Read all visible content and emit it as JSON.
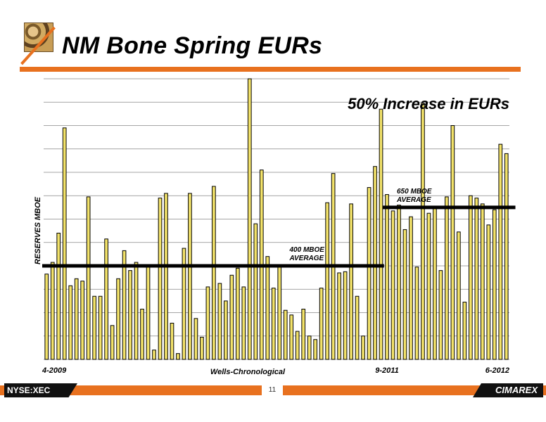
{
  "slide": {
    "title": "NM Bone Spring EURs",
    "ticker": "NYSE:XEC",
    "page_number": "11",
    "brand": "CIMAREX"
  },
  "chart_data": {
    "type": "bar",
    "title": "",
    "headline": "50% Increase in EURs",
    "ylabel": "RESERVES MBOE",
    "xlabel": "Wells-Chronological",
    "x_tick_labels": [
      {
        "label": "4-2009",
        "index": 0
      },
      {
        "label": "9-2011",
        "index": 57
      },
      {
        "label": "6-2012",
        "index": 78
      }
    ],
    "ylim": [
      0,
      1200
    ],
    "grid": true,
    "values": [
      365,
      415,
      540,
      990,
      315,
      345,
      335,
      695,
      270,
      270,
      515,
      145,
      345,
      465,
      380,
      415,
      215,
      400,
      40,
      690,
      710,
      155,
      25,
      475,
      710,
      175,
      95,
      310,
      740,
      325,
      250,
      360,
      390,
      310,
      1200,
      580,
      810,
      440,
      305,
      400,
      210,
      190,
      120,
      215,
      100,
      85,
      305,
      670,
      795,
      370,
      375,
      665,
      270,
      100,
      735,
      825,
      1070,
      705,
      635,
      660,
      555,
      610,
      395,
      1095,
      625,
      655,
      380,
      695,
      1000,
      545,
      245,
      700,
      690,
      665,
      575,
      640,
      920,
      880
    ],
    "averages": [
      {
        "value": 400,
        "label": "400 MBOE AVERAGE",
        "start_index": 0,
        "end_index": 56
      },
      {
        "value": 650,
        "label": "650 MBOE AVERAGE",
        "start_index": 57,
        "end_index": 78
      }
    ],
    "colors": {
      "bar_fill": "#F2E26A",
      "bar_stroke": "#000000",
      "average_line": "#000000",
      "grid": "#888888",
      "accent": "#E8711F"
    }
  }
}
